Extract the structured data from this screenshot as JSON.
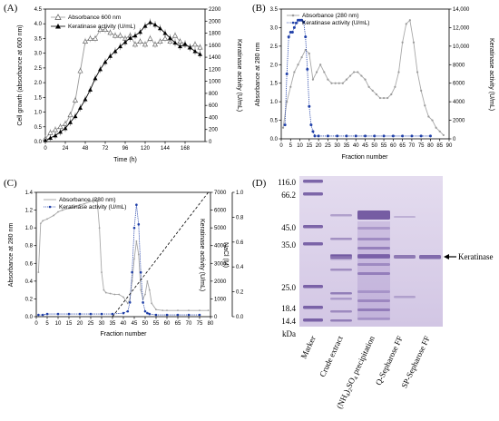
{
  "chart_data": [
    {
      "panel": "(A)",
      "type": "line",
      "xlabel": "Time (h)",
      "ylabel": "Cell growth (absorbance at 600 nm)",
      "y2label": "Keratinase activity (U/mL)",
      "xlim": [
        0,
        192
      ],
      "ylim": [
        0,
        4.5
      ],
      "y2lim": [
        0,
        2200
      ],
      "xticks": [
        0,
        24,
        48,
        72,
        96,
        120,
        144,
        168
      ],
      "yticks": [
        0,
        0.5,
        1.0,
        1.5,
        2.0,
        2.5,
        3.0,
        3.5,
        4.0,
        4.5
      ],
      "y2ticks": [
        0,
        200,
        400,
        600,
        800,
        1000,
        1200,
        1400,
        1600,
        1800,
        2000,
        2200
      ],
      "legend": [
        "Absorbance 600 nm",
        "Keratinase activity (U/mL)"
      ],
      "series": [
        {
          "name": "Absorbance 600 nm",
          "axis": "left",
          "marker": "open-triangle",
          "color": "#777777",
          "x": [
            0,
            6,
            12,
            18,
            24,
            30,
            36,
            42,
            48,
            54,
            60,
            66,
            72,
            78,
            84,
            90,
            96,
            102,
            108,
            114,
            120,
            126,
            132,
            138,
            144,
            150,
            156,
            162,
            168,
            174,
            180,
            186
          ],
          "y": [
            0.1,
            0.3,
            0.4,
            0.5,
            0.6,
            0.9,
            1.4,
            2.4,
            3.4,
            3.5,
            3.5,
            3.8,
            3.8,
            3.7,
            3.6,
            3.6,
            3.5,
            3.6,
            3.3,
            3.4,
            3.3,
            3.5,
            3.3,
            3.4,
            3.5,
            3.4,
            3.6,
            3.4,
            3.3,
            3.2,
            3.3,
            3.2
          ]
        },
        {
          "name": "Keratinase activity (U/mL)",
          "axis": "right",
          "marker": "filled-triangle",
          "color": "#000000",
          "x": [
            0,
            6,
            12,
            18,
            24,
            30,
            36,
            42,
            48,
            54,
            60,
            66,
            72,
            78,
            84,
            90,
            96,
            102,
            108,
            114,
            120,
            126,
            132,
            138,
            144,
            150,
            156,
            162,
            168,
            174,
            180,
            186
          ],
          "y": [
            20,
            60,
            100,
            160,
            220,
            320,
            420,
            560,
            700,
            860,
            1050,
            1200,
            1320,
            1420,
            1500,
            1580,
            1650,
            1720,
            1760,
            1820,
            1920,
            1980,
            1940,
            1880,
            1800,
            1720,
            1640,
            1580,
            1620,
            1560,
            1500,
            1450
          ]
        }
      ]
    },
    {
      "panel": "(B)",
      "type": "line",
      "xlabel": "Fraction number",
      "ylabel": "Absorbance at 280 nm",
      "y2label": "Keratinase activity (U/mL)",
      "xlim": [
        0,
        90
      ],
      "ylim": [
        0,
        3.5
      ],
      "y2lim": [
        0,
        14000
      ],
      "xticks": [
        0,
        5,
        10,
        15,
        20,
        25,
        30,
        35,
        40,
        45,
        50,
        55,
        60,
        65,
        70,
        75,
        80,
        85,
        90
      ],
      "yticks": [
        0.0,
        0.5,
        1.0,
        1.5,
        2.0,
        2.5,
        3.0,
        3.5
      ],
      "y2ticks": [
        0,
        2000,
        4000,
        6000,
        8000,
        10000,
        12000,
        14000
      ],
      "y2ticklabels": [
        "0",
        "2000",
        "4000",
        "6000",
        "8000",
        "10,000",
        "12,000",
        "14,000"
      ],
      "legend": [
        "Absorbance (280 nm)",
        "Keratinase activity (U/mL)"
      ],
      "series": [
        {
          "name": "Absorbance (280 nm)",
          "axis": "left",
          "color": "#aaaaaa",
          "x": [
            1,
            3,
            5,
            7,
            9,
            11,
            13,
            15,
            17,
            19,
            21,
            23,
            25,
            27,
            29,
            31,
            33,
            35,
            37,
            39,
            41,
            43,
            45,
            47,
            49,
            51,
            53,
            55,
            57,
            59,
            61,
            63,
            65,
            67,
            69,
            71,
            73,
            75,
            77,
            79,
            81,
            83,
            85,
            87
          ],
          "y": [
            0.3,
            1.0,
            1.4,
            1.8,
            2.0,
            2.2,
            2.4,
            2.3,
            1.6,
            1.8,
            2.0,
            1.8,
            1.6,
            1.5,
            1.5,
            1.5,
            1.5,
            1.6,
            1.7,
            1.8,
            1.8,
            1.7,
            1.6,
            1.4,
            1.3,
            1.2,
            1.1,
            1.1,
            1.1,
            1.2,
            1.4,
            1.8,
            2.6,
            3.1,
            3.2,
            2.6,
            1.8,
            1.3,
            0.9,
            0.6,
            0.5,
            0.3,
            0.2,
            0.1
          ]
        },
        {
          "name": "Keratinase activity (U/mL)",
          "axis": "right",
          "color": "#1f3fa8",
          "x": [
            2,
            3,
            4,
            5,
            6,
            7,
            8,
            9,
            10,
            11,
            12,
            13,
            14,
            15,
            16,
            17,
            18,
            20,
            25,
            30,
            35,
            40,
            45,
            50,
            55,
            60,
            65,
            70,
            75,
            80
          ],
          "y": [
            1500,
            7000,
            11000,
            11500,
            11500,
            12000,
            12500,
            12800,
            12800,
            12800,
            12600,
            11000,
            7500,
            3500,
            1500,
            800,
            300,
            300,
            300,
            300,
            300,
            300,
            300,
            300,
            300,
            300,
            300,
            300,
            300,
            300
          ]
        }
      ]
    },
    {
      "panel": "(C)",
      "type": "line",
      "xlabel": "Fraction number",
      "ylabel": "Absorbance at 280 nm",
      "y2label": "Keratinase activity (U/mL)",
      "y3label": "NaCl (M)",
      "xlim": [
        0,
        80
      ],
      "ylim": [
        0,
        1.4
      ],
      "y2lim": [
        0,
        7000
      ],
      "y3lim": [
        0,
        1.0
      ],
      "xticks": [
        0,
        5,
        10,
        15,
        20,
        25,
        30,
        35,
        40,
        45,
        50,
        55,
        60,
        65,
        70,
        75,
        80
      ],
      "yticks": [
        0.0,
        0.2,
        0.4,
        0.6,
        0.8,
        1.0,
        1.2,
        1.4
      ],
      "y2ticks": [
        0,
        1000,
        2000,
        3000,
        4000,
        5000,
        6000,
        7000
      ],
      "y3ticks": [
        0.0,
        0.2,
        0.4,
        0.6,
        0.8,
        1.0
      ],
      "legend": [
        "Absorbance (280 nm)",
        "Keratinase activity (U/mL)"
      ],
      "series": [
        {
          "name": "Absorbance (280 nm)",
          "axis": "left",
          "color": "#aaaaaa",
          "x": [
            1,
            2,
            3,
            5,
            8,
            10,
            12,
            15,
            18,
            20,
            22,
            25,
            27,
            28,
            29,
            30,
            31,
            32,
            34,
            36,
            38,
            40,
            42,
            43,
            44,
            45,
            46,
            47,
            48,
            49,
            50,
            51,
            52,
            53,
            55,
            58,
            60,
            65,
            70,
            75,
            79
          ],
          "y": [
            0.5,
            1.05,
            1.08,
            1.1,
            1.14,
            1.18,
            1.2,
            1.22,
            1.24,
            1.26,
            1.27,
            1.3,
            1.32,
            1.3,
            1.0,
            0.5,
            0.3,
            0.27,
            0.26,
            0.25,
            0.25,
            0.22,
            0.15,
            0.2,
            0.4,
            0.65,
            0.85,
            0.7,
            0.3,
            0.2,
            0.25,
            0.4,
            0.3,
            0.15,
            0.08,
            0.07,
            0.07,
            0.07,
            0.07,
            0.07,
            0.07
          ]
        },
        {
          "name": "Keratinase activity (U/mL)",
          "axis": "right",
          "color": "#1f3fa8",
          "x": [
            1,
            3,
            5,
            10,
            15,
            20,
            25,
            30,
            35,
            40,
            42,
            43,
            44,
            45,
            46,
            47,
            48,
            49,
            50,
            51,
            52,
            55,
            60,
            65,
            70,
            75
          ],
          "y": [
            100,
            100,
            150,
            150,
            150,
            150,
            150,
            150,
            150,
            200,
            300,
            800,
            2500,
            5000,
            6300,
            5200,
            2500,
            800,
            300,
            200,
            150,
            100,
            100,
            100,
            100,
            100
          ]
        },
        {
          "name": "NaCl (M)",
          "axis": "third",
          "color": "#000000",
          "style": "dashed",
          "x": [
            35,
            79
          ],
          "y": [
            0.0,
            1.0
          ]
        }
      ]
    },
    {
      "panel": "(D)",
      "type": "gel",
      "mw_unit": "kDa",
      "mw_markers": [
        "116.0",
        "66.2",
        "45.0",
        "35.0",
        "25.0",
        "18.4",
        "14.4"
      ],
      "lanes": [
        "Marker",
        "Crude extract",
        "(NH4)2SO4 precipitation",
        "Q-Sepharose FF",
        "SP-Sepharose FF"
      ],
      "annotation": "Keratinase"
    }
  ],
  "panel_labels": {
    "a": "(A)",
    "b": "(B)",
    "c": "(C)",
    "d": "(D)"
  },
  "axes_text": {
    "a_x": "Time (h)",
    "a_y": "Cell growth (absorbance at 600 nm)",
    "a_y2": "Keratinase activity (U/mL)",
    "a_leg1": "Absorbance 600 nm",
    "a_leg2": "Keratinase activity (U/mL)",
    "b_x": "Fraction number",
    "b_y": "Absorbance at 280 nm",
    "b_y2": "Keratinase activity (U/mL)",
    "b_leg1": "Absorbance (280 nm)",
    "b_leg2": "Keratinase activity (U/mL)",
    "c_x": "Fraction number",
    "c_y": "Absorbance at 280 nm",
    "c_y2": "Keratinase activity (U/mL)",
    "c_y3": "NaCl (M)",
    "c_leg1": "Absorbance (280 nm)",
    "c_leg2": "Keratinase activity (U/mL)"
  },
  "gel": {
    "kda": "kDa",
    "mw": [
      "116.0",
      "66.2",
      "45.0",
      "35.0",
      "25.0",
      "18.4",
      "14.4"
    ],
    "lane_marker": "Marker",
    "lane_crude": "Crude extract",
    "lane_nh4_a": "(NH",
    "lane_nh4_b": "4",
    "lane_nh4_c": ")",
    "lane_nh4_d": "2",
    "lane_nh4_e": "SO",
    "lane_nh4_f": "4",
    "lane_nh4_g": " precipitation",
    "lane_q": "Q-Sepharose FF",
    "lane_sp": "SP-Sepharose FF",
    "annotation": "Keratinase"
  },
  "colors": {
    "gray": "#9a9a9a",
    "blue": "#1f3fa8",
    "gel_bg": "#d8d0e6",
    "band": "#6a4e9e"
  }
}
